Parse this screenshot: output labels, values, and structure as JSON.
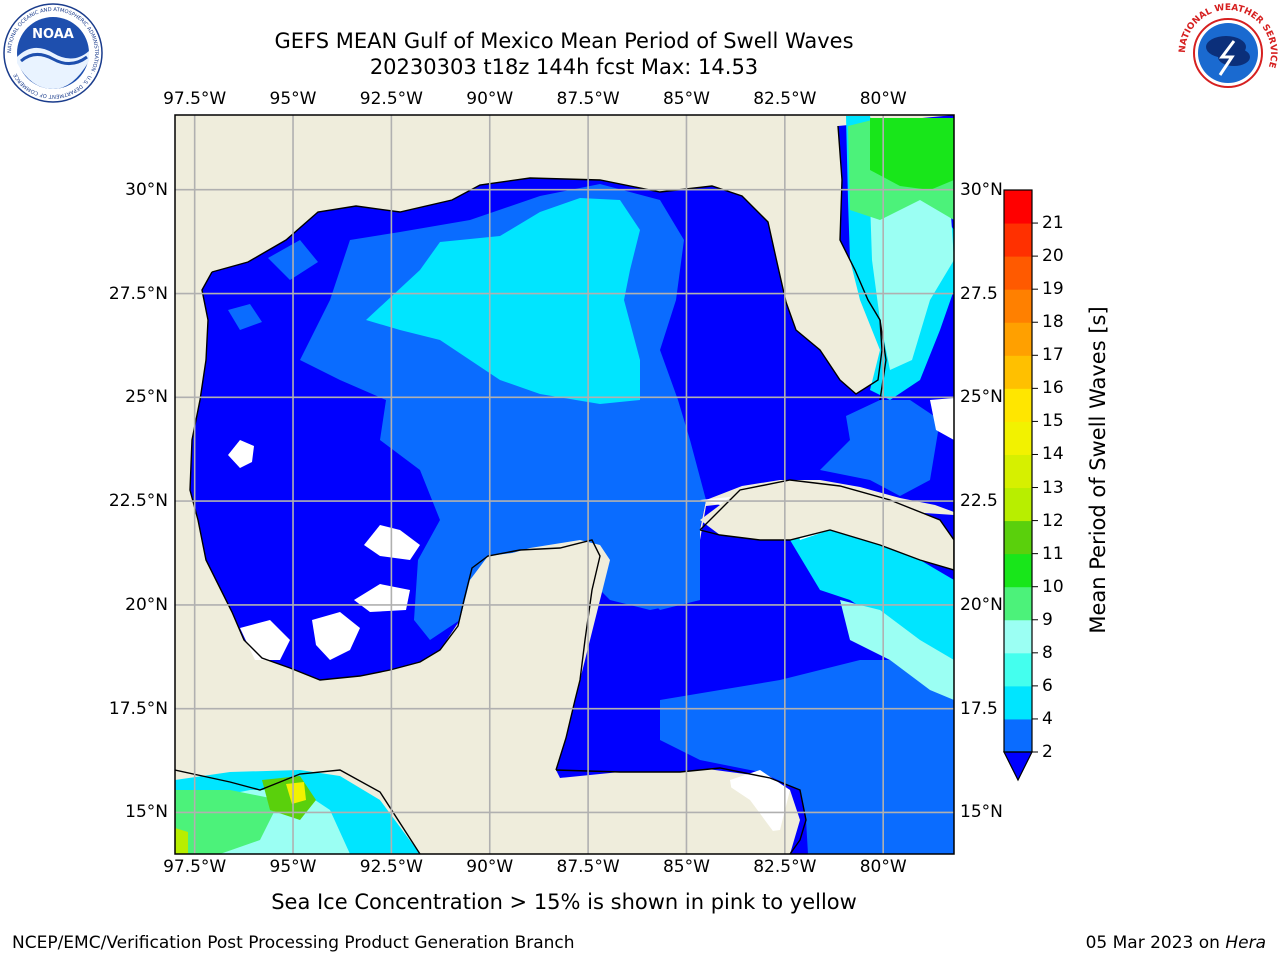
{
  "title": {
    "line1": "GEFS MEAN Gulf of Mexico Mean Period of Swell Waves",
    "line2": "20230303 t18z 144h fcst   Max: 14.53"
  },
  "map": {
    "lon_range": [
      -98,
      -78.2
    ],
    "lat_range": [
      14,
      31.8
    ],
    "lon_ticks": [
      "97.5°W",
      "95°W",
      "92.5°W",
      "90°W",
      "87.5°W",
      "85°W",
      "82.5°W",
      "80°W"
    ],
    "lat_ticks_left": [
      "30°N",
      "27.5°N",
      "25°N",
      "22.5°N",
      "20°N",
      "17.5°N",
      "15°N"
    ],
    "lat_ticks_right": [
      "30°N",
      "27.5",
      "25°N",
      "22.5",
      "20°N",
      "17.5",
      "15°N"
    ],
    "gridlines": true,
    "land_color": "#efeddc",
    "coast_color": "#000000"
  },
  "colorbar": {
    "label": "Mean Period of Swell Waves [s]",
    "ticks": [
      "2",
      "4",
      "6",
      "8",
      "9",
      "10",
      "11",
      "12",
      "13",
      "14",
      "15",
      "16",
      "17",
      "18",
      "19",
      "20",
      "21"
    ],
    "colors": [
      "#0a6cff",
      "#00e5ff",
      "#44ffee",
      "#9bfff3",
      "#4cf27a",
      "#18e61a",
      "#5ad00c",
      "#b8ee00",
      "#d6f000",
      "#f2f200",
      "#ffe600",
      "#ffc000",
      "#ffa000",
      "#ff8000",
      "#ff5a00",
      "#ff3000",
      "#ff0000"
    ],
    "under_color": "#0000ff",
    "extend": "min"
  },
  "ice_note": "Sea Ice Concentration > 15% is shown in pink to yellow",
  "footer": {
    "left": "NCEP/EMC/Verification Post Processing Product Generation Branch",
    "right_date": "05 Mar 2023 on",
    "right_host": "Hera"
  },
  "logos": {
    "left": {
      "name": "NOAA",
      "ring_text": "NATIONAL OCEANIC AND ATMOSPHERIC ADMINISTRATION · U.S. DEPARTMENT OF COMMERCE"
    },
    "right": {
      "name": "NWS",
      "ring_text": "NATIONAL WEATHER SERVICE"
    }
  }
}
